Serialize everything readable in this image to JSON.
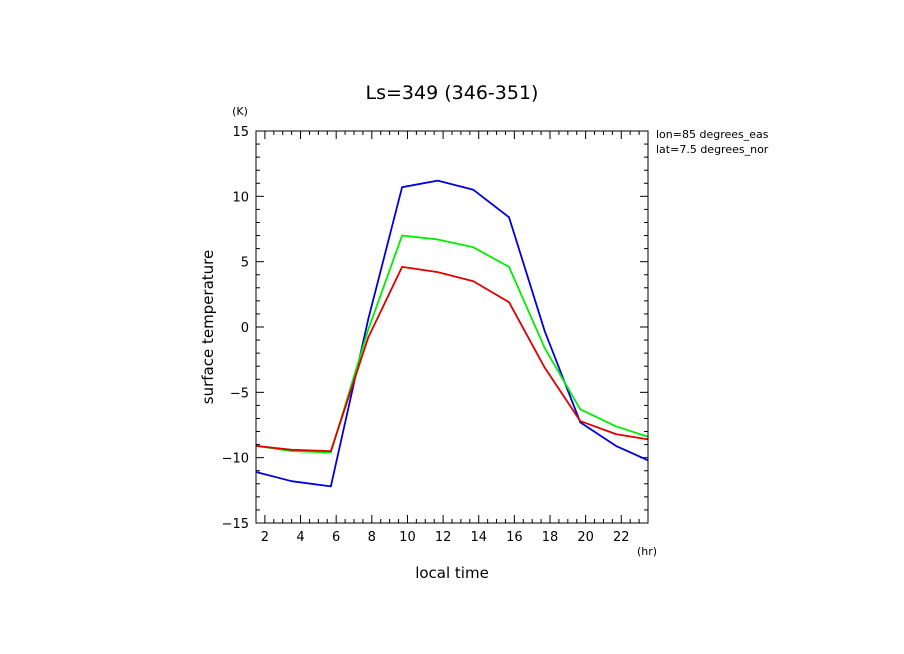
{
  "chart_data": {
    "type": "line",
    "title": "Ls=349 (346-351)",
    "xlabel": "local time",
    "ylabel": "surface temperature",
    "x_unit": "(hr)",
    "y_unit": "(K)",
    "annotations": [
      "lon=85 degrees_eas",
      "lat=7.5 degrees_nor"
    ],
    "xlim": [
      1.5,
      23.5
    ],
    "ylim": [
      -15,
      15
    ],
    "x_ticks": [
      2,
      4,
      6,
      8,
      10,
      12,
      14,
      16,
      18,
      20,
      22
    ],
    "y_ticks": [
      -15,
      -10,
      -5,
      0,
      5,
      10,
      15
    ],
    "x": [
      1.5,
      3.5,
      5.7,
      7.8,
      9.7,
      11.7,
      13.7,
      15.7,
      17.7,
      19.7,
      21.7,
      23.5
    ],
    "series": [
      {
        "color": "#0000dd",
        "values": [
          -11.1,
          -11.8,
          -12.2,
          0.6,
          10.7,
          11.2,
          10.5,
          8.4,
          -0.3,
          -7.3,
          -9.1,
          -10.2
        ]
      },
      {
        "color": "#00ee00",
        "values": [
          -9.1,
          -9.5,
          -9.6,
          -0.2,
          7.0,
          6.7,
          6.1,
          4.6,
          -1.6,
          -6.3,
          -7.6,
          -8.4
        ]
      },
      {
        "color": "#dd0000",
        "values": [
          -9.1,
          -9.4,
          -9.5,
          -0.8,
          4.6,
          4.2,
          3.5,
          1.9,
          -3.1,
          -7.2,
          -8.2,
          -8.6
        ]
      }
    ]
  }
}
